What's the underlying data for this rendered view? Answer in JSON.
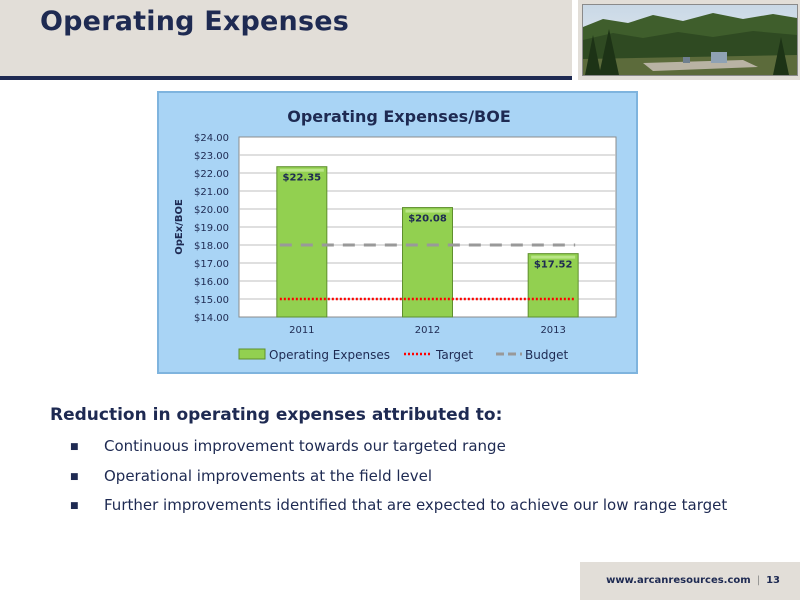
{
  "slide": {
    "title": "Operating Expenses",
    "heading": "Reduction in operating expenses attributed to:",
    "bullets": [
      "Continuous improvement towards our targeted range",
      "Operational improvements at the field level",
      "Further improvements identified that are expected to achieve our low range target"
    ],
    "bullet_icon": "square-bullet-icon",
    "photo_icon": "forest-wellsite-photo-icon"
  },
  "footer": {
    "website": "www.arcanresources.com",
    "separator": "|",
    "page_number": "13"
  },
  "colors": {
    "title": "#1e2a52",
    "header_band": "#e2ded8",
    "bar_fill": "#92d050",
    "chart_background": "#a9d4f5",
    "target_line": "#ff0000",
    "budget_line": "#999999"
  },
  "chart_data": {
    "type": "bar",
    "title": "Operating Expenses/BOE",
    "ylabel": "OpEx/BOE",
    "xlabel": "",
    "ylim": [
      14,
      24
    ],
    "y_ticks": [
      "$14.00",
      "$15.00",
      "$16.00",
      "$17.00",
      "$18.00",
      "$19.00",
      "$20.00",
      "$21.00",
      "$22.00",
      "$23.00",
      "$24.00"
    ],
    "y_tick_values": [
      14,
      15,
      16,
      17,
      18,
      19,
      20,
      21,
      22,
      23,
      24
    ],
    "categories": [
      "2011",
      "2012",
      "2013"
    ],
    "grid": true,
    "legend_position": "bottom",
    "series": [
      {
        "name": "Operating Expenses",
        "type": "bar",
        "values": [
          22.35,
          20.08,
          17.52
        ],
        "labels": [
          "$22.35",
          "$20.08",
          "$17.52"
        ]
      },
      {
        "name": "Target",
        "type": "line",
        "style": "dotted",
        "values": [
          15,
          15,
          15
        ]
      },
      {
        "name": "Budget",
        "type": "line",
        "style": "dashed",
        "values": [
          18,
          18,
          18
        ]
      }
    ]
  }
}
